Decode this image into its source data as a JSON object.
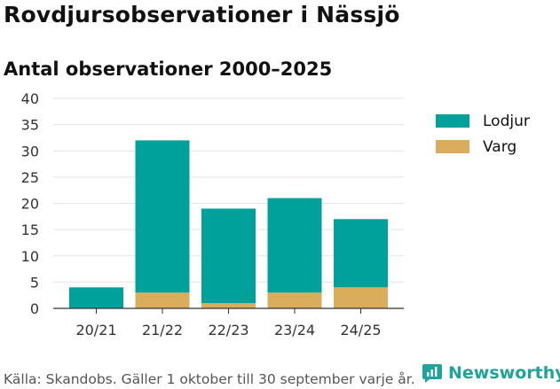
{
  "header": {
    "title": "Rovdjursobservationer i Nässjö",
    "subtitle": "Antal observationer 2000–2025"
  },
  "footer": {
    "source": "Källa: Skandobs. Gäller 1 oktober till 30 september varje år.",
    "brand": "Newsworthy"
  },
  "colors": {
    "lodjur": "#00a19a",
    "varg": "#d9ad5b",
    "grid": "#e3e3e3",
    "axis": "#333333",
    "brand": "#1fa39a"
  },
  "chart_data": {
    "type": "bar",
    "stacked": true,
    "title": "Antal observationer 2000–2025",
    "categories": [
      "20/21",
      "21/22",
      "22/23",
      "23/24",
      "24/25"
    ],
    "series": [
      {
        "name": "Varg",
        "values": [
          0,
          3,
          1,
          3,
          4
        ]
      },
      {
        "name": "Lodjur",
        "values": [
          4,
          29,
          18,
          18,
          13
        ]
      }
    ],
    "legend_order": [
      "Lodjur",
      "Varg"
    ],
    "yticks": [
      0,
      5,
      10,
      15,
      20,
      25,
      30,
      35,
      40
    ],
    "ylim": [
      0,
      40
    ],
    "legend_position": "right",
    "grid": true
  }
}
